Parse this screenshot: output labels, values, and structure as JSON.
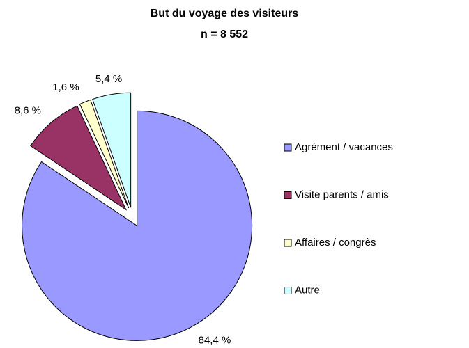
{
  "chart_data": {
    "type": "pie",
    "title": "But du voyage des visiteurs",
    "subtitle": "n = 8 552",
    "categories": [
      "Agrément / vacances",
      "Visite parents / amis",
      "Affaires / congrès",
      "Autre"
    ],
    "values": [
      84.4,
      8.6,
      1.6,
      5.4
    ],
    "value_labels": [
      "84,4 %",
      "8,6 %",
      "1,6 %",
      "5,4 %"
    ],
    "colors": [
      "#9999ff",
      "#993366",
      "#ffffcc",
      "#ccffff"
    ],
    "legend": "right"
  }
}
